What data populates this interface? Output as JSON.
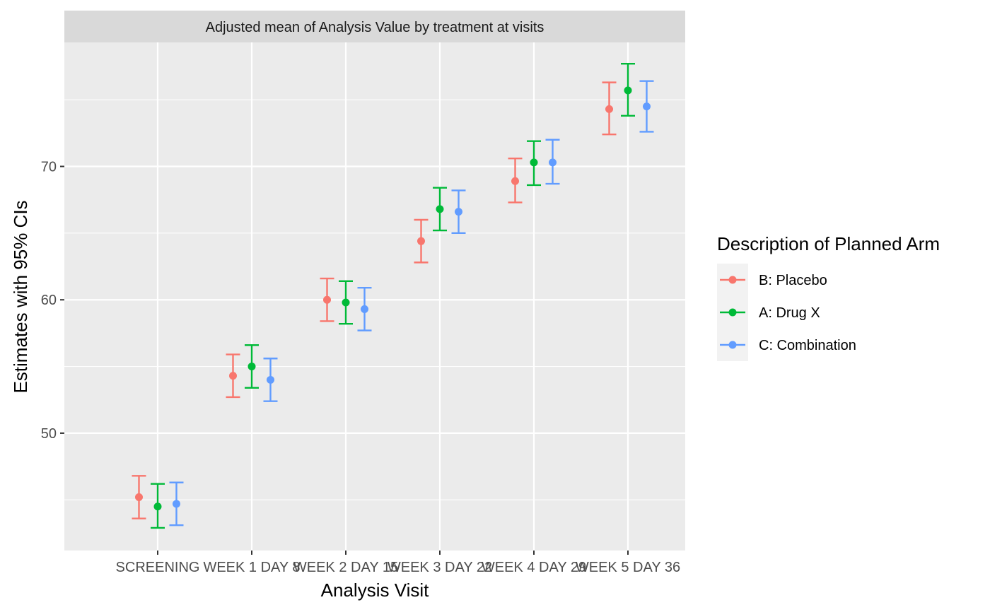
{
  "chart_data": {
    "type": "errorbar",
    "title": "Adjusted mean of Analysis Value by treatment at visits",
    "xlabel": "Analysis Visit",
    "ylabel": "Estimates with 95% CIs",
    "categories": [
      "SCREENING",
      "WEEK 1 DAY 8",
      "WEEK 2 DAY 15",
      "WEEK 3 DAY 22",
      "WEEK 4 DAY 29",
      "WEEK 5 DAY 36"
    ],
    "ylim": [
      41.2,
      79.3
    ],
    "yticks": [
      50,
      60,
      70
    ],
    "grid": true,
    "legend": {
      "title": "Description of Planned Arm",
      "position": "right"
    },
    "series": [
      {
        "name": "B: Placebo",
        "color": "#F8766D",
        "estimate": [
          45.2,
          54.3,
          60.0,
          64.4,
          68.9,
          74.3
        ],
        "lower": [
          43.6,
          52.7,
          58.4,
          62.8,
          67.3,
          72.4
        ],
        "upper": [
          46.8,
          55.9,
          61.6,
          66.0,
          70.6,
          76.3
        ]
      },
      {
        "name": "A: Drug X",
        "color": "#00BA38",
        "estimate": [
          44.5,
          55.0,
          59.8,
          66.8,
          70.3,
          75.7
        ],
        "lower": [
          42.9,
          53.4,
          58.2,
          65.2,
          68.6,
          73.8
        ],
        "upper": [
          46.2,
          56.6,
          61.4,
          68.4,
          71.9,
          77.7
        ]
      },
      {
        "name": "C: Combination",
        "color": "#619CFF",
        "estimate": [
          44.7,
          54.0,
          59.3,
          66.6,
          70.3,
          74.5
        ],
        "lower": [
          43.1,
          52.4,
          57.7,
          65.0,
          68.7,
          72.6
        ],
        "upper": [
          46.3,
          55.6,
          60.9,
          68.2,
          72.0,
          76.4
        ]
      }
    ]
  }
}
